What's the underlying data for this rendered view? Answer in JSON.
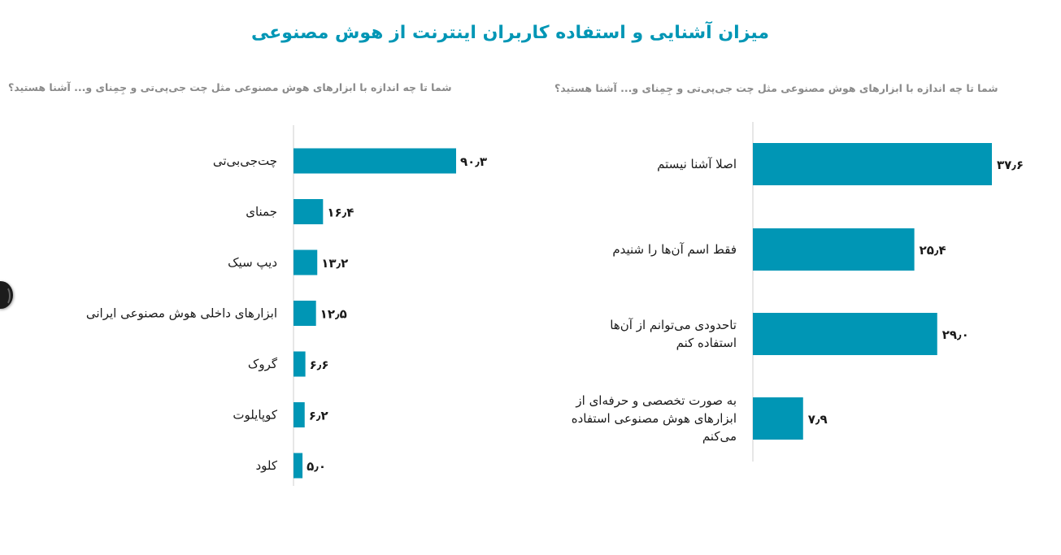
{
  "title": "میزان آشنایی و استفاده کاربران اینترنت از هوش مصنوعی",
  "chart_data": [
    {
      "type": "bar",
      "orientation": "horizontal",
      "title": "شما تا چه اندازه با ابزارهای هوش مصنوعی مثل چت جی‌پی‌تی و جِمِنای و... آشنا هستید؟",
      "categories": [
        "چت‌جی‌بی‌تی",
        "جمنای",
        "دیپ سیک",
        "ابزارهای داخلی هوش مصنوعی ایرانی",
        "گروک",
        "کوپایلوت",
        "کلود"
      ],
      "values": [
        90.3,
        16.4,
        13.2,
        12.5,
        6.6,
        6.2,
        5.0
      ],
      "value_labels": [
        "۹۰٫۳",
        "۱۶٫۴",
        "۱۳٫۲",
        "۱۲٫۵",
        "۶٫۶",
        "۶٫۲",
        "۵٫۰"
      ],
      "color": "#0096b5",
      "grid": false
    },
    {
      "type": "bar",
      "orientation": "horizontal",
      "title": "شما تا چه اندازه با ابزارهای هوش مصنوعی مثل چت جی‌پی‌تی و جِمِنای و... آشنا هستید؟",
      "categories": [
        "اصلا آشنا نیستم",
        "فقط اسم آن‌ها را شنیدم",
        "تاحدودی می‌توانم از آن‌ها استفاده کنم",
        "به صورت تخصصی و حرفه‌ای از ابزارهای هوش مصنوعی استفاده می‌کنم"
      ],
      "category_lines": [
        [
          "اصلا آشنا نیستم"
        ],
        [
          "فقط اسم آن‌ها را شنیدم"
        ],
        [
          "تاحدودی می‌توانم از آن‌ها",
          "استفاده کنم"
        ],
        [
          "به صورت تخصصی و حرفه‌ای از",
          "ابزارهای هوش مصنوعی استفاده",
          "می‌کنم"
        ]
      ],
      "values": [
        37.6,
        25.4,
        29.0,
        7.9
      ],
      "value_labels": [
        "۳۷٫۶",
        "۲۵٫۴",
        "۲۹٫۰",
        "۷٫۹"
      ],
      "color": "#0096b5",
      "grid": false
    }
  ]
}
